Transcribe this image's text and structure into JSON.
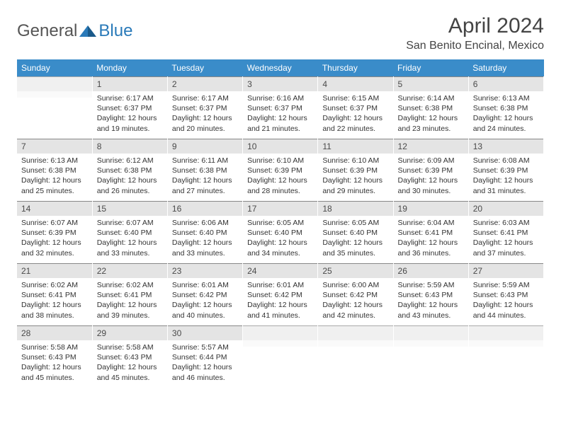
{
  "logo": {
    "part1": "General",
    "part2": "Blue"
  },
  "title": "April 2024",
  "location": "San Benito Encinal, Mexico",
  "colors": {
    "header_bg": "#3a8cc9",
    "header_text": "#ffffff",
    "daynum_bg": "#e4e4e4",
    "text": "#333333",
    "logo_blue": "#2a7ab9",
    "logo_gray": "#555555"
  },
  "day_headers": [
    "Sunday",
    "Monday",
    "Tuesday",
    "Wednesday",
    "Thursday",
    "Friday",
    "Saturday"
  ],
  "weeks": [
    [
      {
        "n": "",
        "sr": "",
        "ss": "",
        "dl": "",
        "empty": true
      },
      {
        "n": "1",
        "sr": "Sunrise: 6:17 AM",
        "ss": "Sunset: 6:37 PM",
        "dl": "Daylight: 12 hours and 19 minutes."
      },
      {
        "n": "2",
        "sr": "Sunrise: 6:17 AM",
        "ss": "Sunset: 6:37 PM",
        "dl": "Daylight: 12 hours and 20 minutes."
      },
      {
        "n": "3",
        "sr": "Sunrise: 6:16 AM",
        "ss": "Sunset: 6:37 PM",
        "dl": "Daylight: 12 hours and 21 minutes."
      },
      {
        "n": "4",
        "sr": "Sunrise: 6:15 AM",
        "ss": "Sunset: 6:37 PM",
        "dl": "Daylight: 12 hours and 22 minutes."
      },
      {
        "n": "5",
        "sr": "Sunrise: 6:14 AM",
        "ss": "Sunset: 6:38 PM",
        "dl": "Daylight: 12 hours and 23 minutes."
      },
      {
        "n": "6",
        "sr": "Sunrise: 6:13 AM",
        "ss": "Sunset: 6:38 PM",
        "dl": "Daylight: 12 hours and 24 minutes."
      }
    ],
    [
      {
        "n": "7",
        "sr": "Sunrise: 6:13 AM",
        "ss": "Sunset: 6:38 PM",
        "dl": "Daylight: 12 hours and 25 minutes."
      },
      {
        "n": "8",
        "sr": "Sunrise: 6:12 AM",
        "ss": "Sunset: 6:38 PM",
        "dl": "Daylight: 12 hours and 26 minutes."
      },
      {
        "n": "9",
        "sr": "Sunrise: 6:11 AM",
        "ss": "Sunset: 6:38 PM",
        "dl": "Daylight: 12 hours and 27 minutes."
      },
      {
        "n": "10",
        "sr": "Sunrise: 6:10 AM",
        "ss": "Sunset: 6:39 PM",
        "dl": "Daylight: 12 hours and 28 minutes."
      },
      {
        "n": "11",
        "sr": "Sunrise: 6:10 AM",
        "ss": "Sunset: 6:39 PM",
        "dl": "Daylight: 12 hours and 29 minutes."
      },
      {
        "n": "12",
        "sr": "Sunrise: 6:09 AM",
        "ss": "Sunset: 6:39 PM",
        "dl": "Daylight: 12 hours and 30 minutes."
      },
      {
        "n": "13",
        "sr": "Sunrise: 6:08 AM",
        "ss": "Sunset: 6:39 PM",
        "dl": "Daylight: 12 hours and 31 minutes."
      }
    ],
    [
      {
        "n": "14",
        "sr": "Sunrise: 6:07 AM",
        "ss": "Sunset: 6:39 PM",
        "dl": "Daylight: 12 hours and 32 minutes."
      },
      {
        "n": "15",
        "sr": "Sunrise: 6:07 AM",
        "ss": "Sunset: 6:40 PM",
        "dl": "Daylight: 12 hours and 33 minutes."
      },
      {
        "n": "16",
        "sr": "Sunrise: 6:06 AM",
        "ss": "Sunset: 6:40 PM",
        "dl": "Daylight: 12 hours and 33 minutes."
      },
      {
        "n": "17",
        "sr": "Sunrise: 6:05 AM",
        "ss": "Sunset: 6:40 PM",
        "dl": "Daylight: 12 hours and 34 minutes."
      },
      {
        "n": "18",
        "sr": "Sunrise: 6:05 AM",
        "ss": "Sunset: 6:40 PM",
        "dl": "Daylight: 12 hours and 35 minutes."
      },
      {
        "n": "19",
        "sr": "Sunrise: 6:04 AM",
        "ss": "Sunset: 6:41 PM",
        "dl": "Daylight: 12 hours and 36 minutes."
      },
      {
        "n": "20",
        "sr": "Sunrise: 6:03 AM",
        "ss": "Sunset: 6:41 PM",
        "dl": "Daylight: 12 hours and 37 minutes."
      }
    ],
    [
      {
        "n": "21",
        "sr": "Sunrise: 6:02 AM",
        "ss": "Sunset: 6:41 PM",
        "dl": "Daylight: 12 hours and 38 minutes."
      },
      {
        "n": "22",
        "sr": "Sunrise: 6:02 AM",
        "ss": "Sunset: 6:41 PM",
        "dl": "Daylight: 12 hours and 39 minutes."
      },
      {
        "n": "23",
        "sr": "Sunrise: 6:01 AM",
        "ss": "Sunset: 6:42 PM",
        "dl": "Daylight: 12 hours and 40 minutes."
      },
      {
        "n": "24",
        "sr": "Sunrise: 6:01 AM",
        "ss": "Sunset: 6:42 PM",
        "dl": "Daylight: 12 hours and 41 minutes."
      },
      {
        "n": "25",
        "sr": "Sunrise: 6:00 AM",
        "ss": "Sunset: 6:42 PM",
        "dl": "Daylight: 12 hours and 42 minutes."
      },
      {
        "n": "26",
        "sr": "Sunrise: 5:59 AM",
        "ss": "Sunset: 6:43 PM",
        "dl": "Daylight: 12 hours and 43 minutes."
      },
      {
        "n": "27",
        "sr": "Sunrise: 5:59 AM",
        "ss": "Sunset: 6:43 PM",
        "dl": "Daylight: 12 hours and 44 minutes."
      }
    ],
    [
      {
        "n": "28",
        "sr": "Sunrise: 5:58 AM",
        "ss": "Sunset: 6:43 PM",
        "dl": "Daylight: 12 hours and 45 minutes."
      },
      {
        "n": "29",
        "sr": "Sunrise: 5:58 AM",
        "ss": "Sunset: 6:43 PM",
        "dl": "Daylight: 12 hours and 45 minutes."
      },
      {
        "n": "30",
        "sr": "Sunrise: 5:57 AM",
        "ss": "Sunset: 6:44 PM",
        "dl": "Daylight: 12 hours and 46 minutes."
      },
      {
        "n": "",
        "sr": "",
        "ss": "",
        "dl": "",
        "empty": true
      },
      {
        "n": "",
        "sr": "",
        "ss": "",
        "dl": "",
        "empty": true
      },
      {
        "n": "",
        "sr": "",
        "ss": "",
        "dl": "",
        "empty": true
      },
      {
        "n": "",
        "sr": "",
        "ss": "",
        "dl": "",
        "empty": true
      }
    ]
  ]
}
